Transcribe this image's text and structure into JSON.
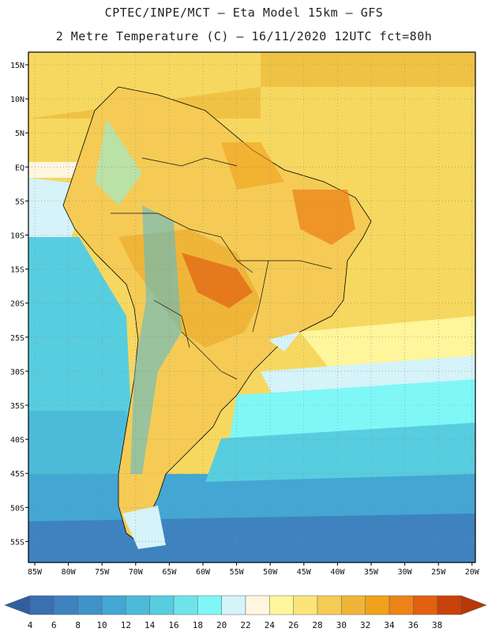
{
  "header": {
    "line1": "CPTEC/INPE/MCT –  Eta Model 15km – GFS",
    "line2": "2 Metre Temperature (C) – 16/11/2020 12UTC fct=80h"
  },
  "axes": {
    "lat_labels": [
      "15N",
      "10N",
      "5N",
      "EQ",
      "5S",
      "10S",
      "15S",
      "20S",
      "25S",
      "30S",
      "35S",
      "40S",
      "45S",
      "50S",
      "55S"
    ],
    "lon_labels": [
      "85W",
      "80W",
      "75W",
      "70W",
      "65W",
      "60W",
      "55W",
      "50W",
      "45W",
      "40W",
      "35W",
      "30W",
      "25W",
      "20W"
    ]
  },
  "colorbar": {
    "labels": [
      "4",
      "6",
      "8",
      "10",
      "12",
      "14",
      "16",
      "18",
      "20",
      "22",
      "24",
      "26",
      "28",
      "30",
      "32",
      "34",
      "36",
      "38"
    ],
    "colors": [
      "#3a6fb0",
      "#3e82bf",
      "#3f93c8",
      "#44a6d2",
      "#4cbbd9",
      "#57cde0",
      "#6ee3ea",
      "#7ff7f7",
      "#d5f3f8",
      "#fff6e0",
      "#fff59a",
      "#fde47a",
      "#f5cb55",
      "#efb539",
      "#f0a21a",
      "#ec8319",
      "#e2600e",
      "#c9410b"
    ],
    "low_arrow_color": "#2f5f9e",
    "high_arrow_color": "#b8380a"
  }
}
